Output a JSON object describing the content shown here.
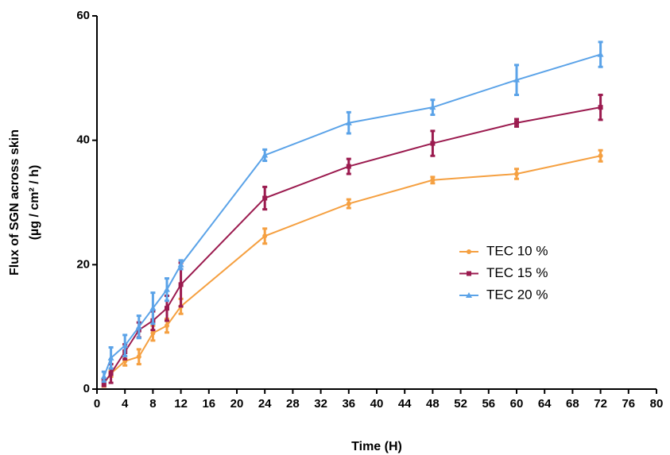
{
  "chart_data": {
    "type": "line",
    "xlabel": "Time (H)",
    "ylabel": [
      "Flux of SGN across skin",
      "(µg / cm² / h)"
    ],
    "x": [
      1,
      2,
      4,
      6,
      8,
      10,
      12,
      24,
      36,
      48,
      60,
      72
    ],
    "series": [
      {
        "name": "TEC 10 %",
        "color": "#f5a041",
        "marker": "circle",
        "values": [
          0.9,
          2.5,
          4.5,
          5.2,
          9.0,
          10.2,
          13.3,
          24.6,
          29.8,
          33.6,
          34.6,
          37.5
        ],
        "errors": [
          0.5,
          0.5,
          0.7,
          1.2,
          1.2,
          1.1,
          1.2,
          1.2,
          0.7,
          0.5,
          0.8,
          0.9
        ]
      },
      {
        "name": "TEC 15 %",
        "color": "#9b1b4f",
        "marker": "square",
        "values": [
          1.0,
          2.5,
          6.0,
          9.5,
          11.0,
          13.0,
          16.8,
          30.7,
          35.8,
          39.5,
          42.8,
          45.3
        ],
        "errors": [
          0.5,
          1.5,
          1.2,
          1.2,
          1.5,
          2.0,
          3.5,
          1.8,
          1.2,
          2.0,
          0.6,
          2.0
        ]
      },
      {
        "name": "TEC 20 %",
        "color": "#5ba3e8",
        "marker": "triangle",
        "values": [
          2.0,
          5.0,
          7.0,
          10.0,
          13.0,
          16.0,
          20.0,
          37.6,
          42.8,
          45.3,
          49.7,
          53.8
        ],
        "errors": [
          0.8,
          1.7,
          1.7,
          1.8,
          2.5,
          1.8,
          0.7,
          0.9,
          1.7,
          1.2,
          2.4,
          2.0
        ]
      }
    ],
    "xlim": [
      0,
      80
    ],
    "xticks": [
      0,
      4,
      8,
      12,
      16,
      20,
      24,
      28,
      32,
      36,
      40,
      44,
      48,
      52,
      56,
      60,
      64,
      68,
      72,
      76,
      80
    ],
    "ylim": [
      0,
      60
    ],
    "yticks": [
      0,
      20,
      40,
      60
    ],
    "grid": false,
    "legend": "center right"
  }
}
